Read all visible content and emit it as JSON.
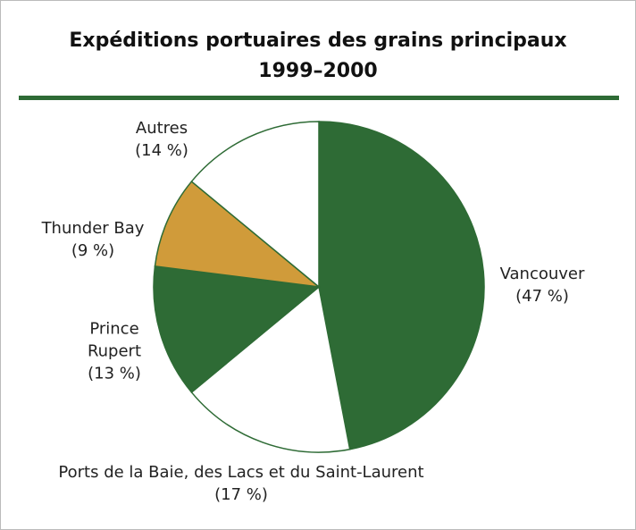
{
  "chart_data": {
    "type": "pie",
    "title": "Expéditions portuaires des grains principaux",
    "subtitle": "1999–2000",
    "categories": [
      "Vancouver",
      "Ports de la Baie, des Lacs et du Saint-Laurent",
      "Prince Rupert",
      "Thunder Bay",
      "Autres"
    ],
    "values": [
      47,
      17,
      13,
      9,
      14
    ],
    "value_labels": [
      "(47 %)",
      "(17 %)",
      "(13 %)",
      "(9 %)",
      "(14 %)"
    ],
    "colors": [
      "#2e6b35",
      "#ffffff",
      "#2e6b35",
      "#d09b3a",
      "#ffffff"
    ]
  }
}
